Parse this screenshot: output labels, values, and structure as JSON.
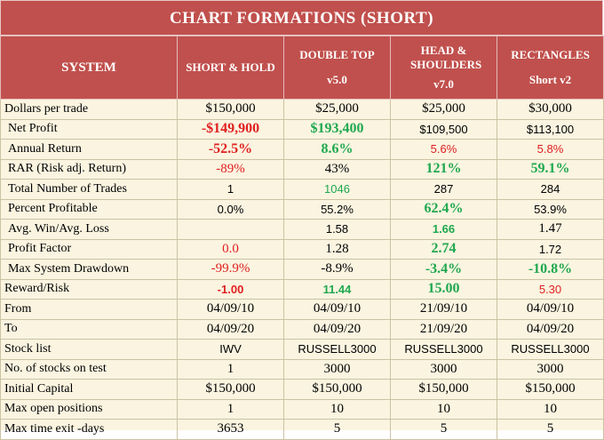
{
  "title": "CHART FORMATIONS (SHORT)",
  "headers": {
    "system": "SYSTEM",
    "col1": {
      "name": "SHORT & HOLD",
      "version": ""
    },
    "col2": {
      "name": "DOUBLE TOP",
      "version": "v5.0"
    },
    "col3": {
      "name": "HEAD & SHOULDERS",
      "version": "v7.0"
    },
    "col4": {
      "name": "RECTANGLES",
      "version": "Short v2"
    }
  },
  "rows": [
    {
      "label": "Dollars per trade",
      "values": [
        "$150,000",
        "$25,000",
        "$25,000",
        "$30,000"
      ]
    },
    {
      "label": "Net Profit",
      "values": [
        "-$149,900",
        "$193,400",
        "$109,500",
        "$113,100"
      ]
    },
    {
      "label": "Annual Return",
      "values": [
        "-52.5%",
        "8.6%",
        "5.6%",
        "5.8%"
      ]
    },
    {
      "label": "RAR (Risk adj. Return)",
      "values": [
        "-89%",
        "43%",
        "121%",
        "59.1%"
      ]
    },
    {
      "label": "Total Number of Trades",
      "values": [
        "1",
        "1046",
        "287",
        "284"
      ]
    },
    {
      "label": "Percent Profitable",
      "values": [
        "0.0%",
        "55.2%",
        "62.4%",
        "53.9%"
      ]
    },
    {
      "label": "Avg. Win/Avg. Loss",
      "values": [
        "",
        "1.58",
        "1.66",
        "1.47"
      ]
    },
    {
      "label": "Profit Factor",
      "values": [
        "0.0",
        "1.28",
        "2.74",
        "1.72"
      ]
    },
    {
      "label": "Max System Drawdown",
      "values": [
        "-99.9%",
        "-8.9%",
        "-3.4%",
        "-10.8%"
      ]
    },
    {
      "label": "Reward/Risk",
      "values": [
        "-1.00",
        "11.44",
        "15.00",
        "5.30"
      ]
    },
    {
      "label": "From",
      "values": [
        "04/09/10",
        "04/09/10",
        "21/09/10",
        "04/09/10"
      ]
    },
    {
      "label": "To",
      "values": [
        "04/09/20",
        "04/09/20",
        "21/09/20",
        "04/09/20"
      ]
    },
    {
      "label": "Stock list",
      "values": [
        "IWV",
        "RUSSELL3000",
        "RUSSELL3000",
        "RUSSELL3000"
      ]
    },
    {
      "label": "No. of stocks on test",
      "values": [
        "1",
        "3000",
        "3000",
        "3000"
      ]
    },
    {
      "label": "Initial Capital",
      "values": [
        "$150,000",
        "$150,000",
        "$150,000",
        "$150,000"
      ]
    },
    {
      "label": "Max open positions",
      "values": [
        "1",
        "10",
        "10",
        "10"
      ]
    },
    {
      "label": "Max time exit -days",
      "values": [
        "3653",
        "5",
        "5",
        "5"
      ]
    }
  ],
  "colors": {
    "header_bg": "#c0504d",
    "body_bg": "#faf4e0",
    "negative": "#e02020",
    "positive": "#1fa84f"
  }
}
